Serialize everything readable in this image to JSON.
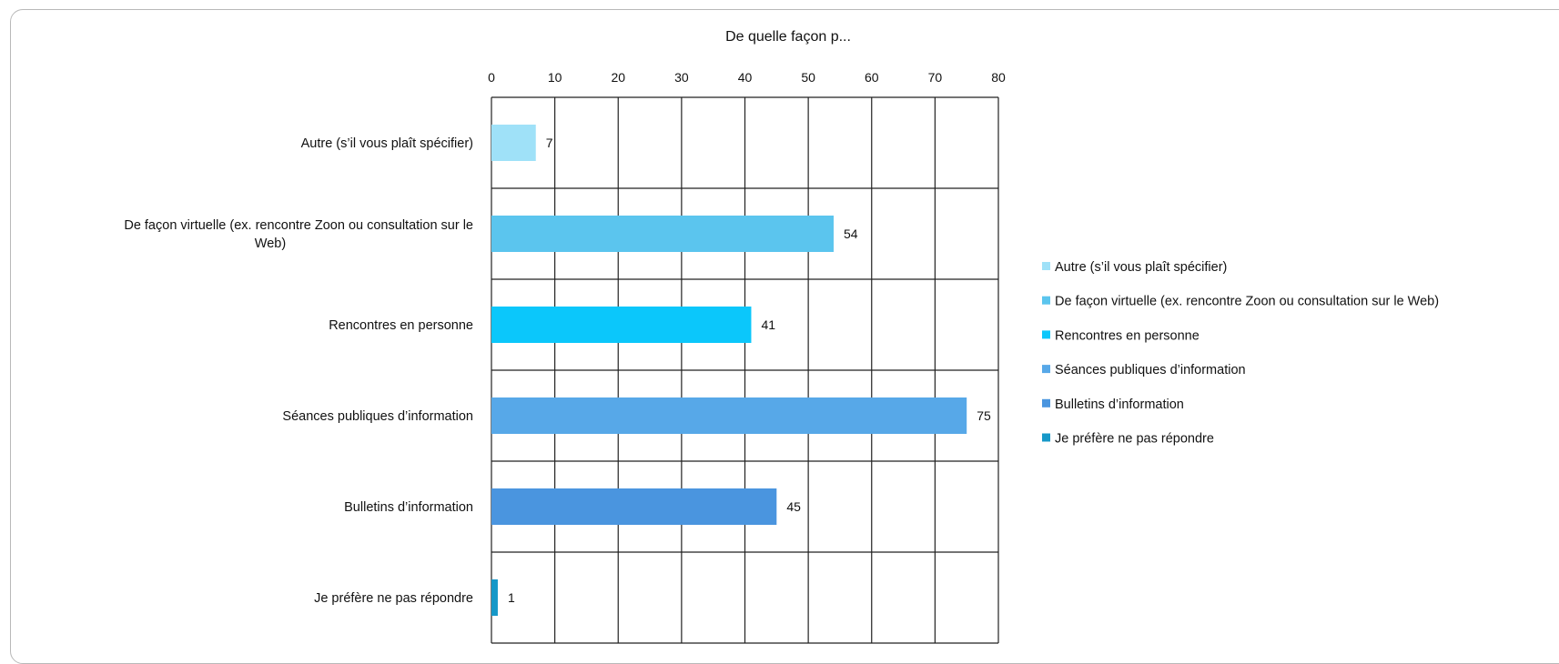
{
  "chart_data": {
    "type": "bar",
    "orientation": "horizontal",
    "title": "De quelle façon p...",
    "xlim": [
      0,
      80
    ],
    "ticks": [
      0,
      10,
      20,
      30,
      40,
      50,
      60,
      70,
      80
    ],
    "grid": true,
    "legend_position": "right",
    "categories": [
      {
        "label_lines": [
          "Autre (s’il vous plaît spécifier)"
        ],
        "value": 7,
        "color": "#9fe1f8",
        "legend": "Autre (s’il vous plaît spécifier)"
      },
      {
        "label_lines": [
          "De façon virtuelle (ex. rencontre Zoon ou consultation sur le",
          "Web)"
        ],
        "value": 54,
        "color": "#5bc5ee",
        "legend": "De façon virtuelle (ex. rencontre Zoon ou consultation sur le Web)"
      },
      {
        "label_lines": [
          "Rencontres en personne"
        ],
        "value": 41,
        "color": "#0bc7fb",
        "legend": "Rencontres en personne"
      },
      {
        "label_lines": [
          "Séances publiques d’information"
        ],
        "value": 75,
        "color": "#57a8e8",
        "legend": "Séances publiques d’information"
      },
      {
        "label_lines": [
          "Bulletins d’information"
        ],
        "value": 45,
        "color": "#4a95df",
        "legend": "Bulletins d’information"
      },
      {
        "label_lines": [
          "Je préfère ne pas répondre"
        ],
        "value": 1,
        "color": "#1698c8",
        "legend": "Je préfère ne pas répondre"
      }
    ]
  }
}
